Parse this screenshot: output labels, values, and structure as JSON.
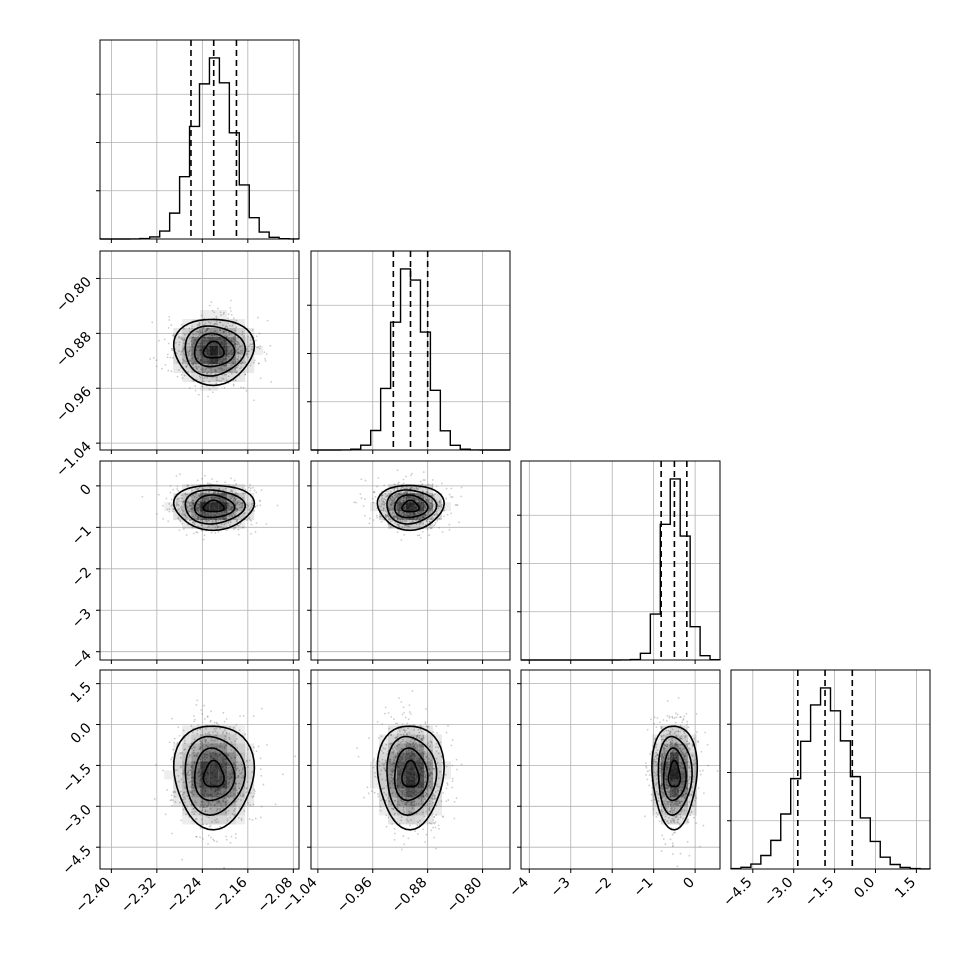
{
  "chart_data": {
    "type": "corner",
    "title": "",
    "parameters": [
      {
        "range": [
          -2.42,
          -2.07
        ],
        "ticks": [
          -2.4,
          -2.32,
          -2.24,
          -2.16,
          -2.08
        ],
        "tick_labels": [
          "−2.40",
          "−2.32",
          "−2.24",
          "−2.16",
          "−2.08"
        ],
        "mean": -2.22,
        "sd": 0.035,
        "quantiles": [
          -2.26,
          -2.22,
          -2.18
        ]
      },
      {
        "range": [
          -1.05,
          -0.76
        ],
        "ticks": [
          -1.04,
          -0.96,
          -0.88,
          -0.8
        ],
        "tick_labels": [
          "−1.04",
          "−0.96",
          "−0.88",
          "−0.80"
        ],
        "mean": -0.905,
        "sd": 0.024,
        "quantiles": [
          -0.93,
          -0.905,
          -0.88
        ]
      },
      {
        "range": [
          -4.2,
          0.6
        ],
        "ticks": [
          -4,
          -3,
          -2,
          -1,
          0
        ],
        "tick_labels": [
          "−4",
          "−3",
          "−2",
          "−1",
          "0"
        ],
        "mean": -0.5,
        "sd": 0.27,
        "quantiles": [
          -0.82,
          -0.5,
          -0.2
        ]
      },
      {
        "range": [
          -5.3,
          2.0
        ],
        "ticks": [
          -4.5,
          -3.0,
          -1.5,
          0.0,
          1.5
        ],
        "tick_labels": [
          "−4.5",
          "−3.0",
          "−1.5",
          "0.0",
          "1.5"
        ],
        "mean": -1.85,
        "sd": 0.95,
        "quantiles": [
          -2.85,
          -1.85,
          -0.85
        ]
      }
    ],
    "histogram_bins": 20,
    "quantile_levels": [
      0.16,
      0.5,
      0.84
    ],
    "contour_levels": 4,
    "grid": true,
    "colors": {
      "line": "#000000",
      "grid": "#b0b0b0",
      "density": "#000000",
      "points": "#707070"
    }
  }
}
